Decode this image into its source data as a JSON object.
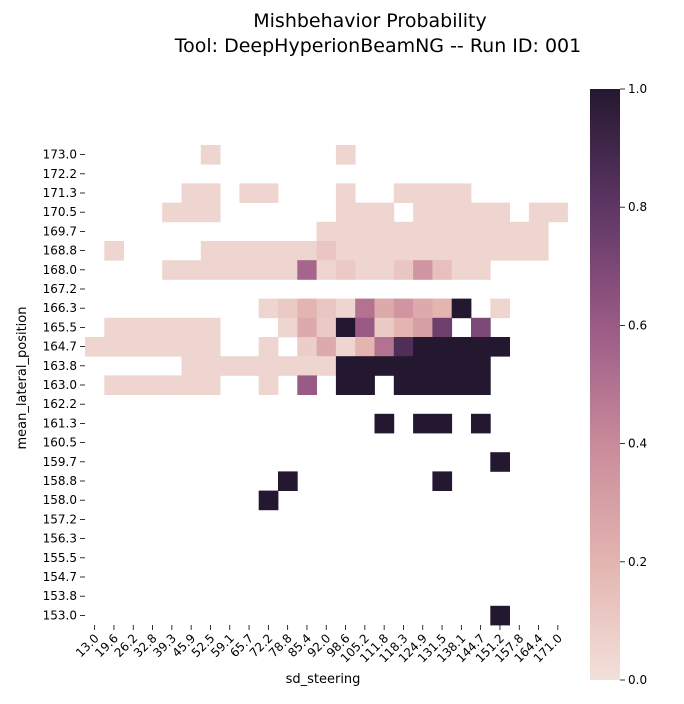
{
  "chart_data": {
    "type": "heatmap",
    "title": "Mishbehavior Probability",
    "subtitle": "Tool: DeepHyperionBeamNG -- Run ID: 001",
    "xlabel": "sd_steering",
    "ylabel": "mean_lateral_position",
    "x": [
      "13.0",
      "19.6",
      "26.2",
      "32.8",
      "39.3",
      "45.9",
      "52.5",
      "59.1",
      "65.7",
      "72.2",
      "78.8",
      "85.4",
      "92.0",
      "98.6",
      "105.2",
      "111.8",
      "118.3",
      "124.9",
      "131.5",
      "138.1",
      "144.7",
      "151.2",
      "157.8",
      "164.4",
      "171.0"
    ],
    "y": [
      "173.0",
      "172.2",
      "171.3",
      "170.5",
      "169.7",
      "168.8",
      "168.0",
      "167.2",
      "166.3",
      "165.5",
      "164.7",
      "163.8",
      "163.0",
      "162.2",
      "161.3",
      "160.5",
      "159.7",
      "158.8",
      "158.0",
      "157.2",
      "156.3",
      "155.5",
      "154.7",
      "153.8",
      "153.0"
    ],
    "z": [
      [
        null,
        null,
        null,
        null,
        null,
        null,
        0.05,
        null,
        null,
        null,
        null,
        null,
        null,
        0.05,
        null,
        null,
        null,
        null,
        null,
        null,
        null,
        null,
        null,
        null,
        null
      ],
      [
        null,
        null,
        null,
        null,
        null,
        null,
        null,
        null,
        null,
        null,
        null,
        null,
        null,
        null,
        null,
        null,
        null,
        null,
        null,
        null,
        null,
        null,
        null,
        null,
        null
      ],
      [
        null,
        null,
        null,
        null,
        null,
        0.05,
        0.05,
        null,
        0.05,
        0.05,
        null,
        null,
        null,
        0.05,
        null,
        null,
        0.05,
        0.05,
        0.05,
        0.05,
        null,
        null,
        null,
        null,
        null
      ],
      [
        null,
        null,
        null,
        null,
        0.05,
        0.05,
        0.05,
        null,
        null,
        null,
        null,
        null,
        null,
        0.05,
        0.05,
        0.05,
        null,
        0.05,
        0.05,
        0.05,
        0.05,
        0.05,
        null,
        0.05,
        0.05
      ],
      [
        null,
        null,
        null,
        null,
        null,
        null,
        null,
        null,
        null,
        null,
        null,
        null,
        0.05,
        0.05,
        0.05,
        0.05,
        0.05,
        0.05,
        0.05,
        0.05,
        0.05,
        0.05,
        0.05,
        0.05,
        null
      ],
      [
        null,
        0.05,
        null,
        null,
        null,
        null,
        0.05,
        0.05,
        0.05,
        0.05,
        0.05,
        0.05,
        0.12,
        0.05,
        0.05,
        0.05,
        0.05,
        0.05,
        0.05,
        0.05,
        0.05,
        0.05,
        0.05,
        0.05,
        null
      ],
      [
        null,
        null,
        null,
        null,
        0.05,
        0.05,
        0.05,
        0.05,
        0.05,
        0.05,
        0.05,
        0.55,
        0.05,
        0.1,
        0.05,
        0.05,
        0.12,
        0.35,
        0.15,
        0.05,
        0.05,
        null,
        null,
        null,
        null
      ],
      [
        null,
        null,
        null,
        null,
        null,
        null,
        null,
        null,
        null,
        null,
        null,
        null,
        null,
        null,
        null,
        null,
        null,
        null,
        null,
        null,
        null,
        null,
        null,
        null,
        null
      ],
      [
        null,
        null,
        null,
        null,
        null,
        null,
        null,
        null,
        null,
        0.05,
        0.1,
        0.2,
        0.12,
        0.05,
        0.5,
        0.25,
        0.35,
        0.25,
        0.2,
        1.0,
        null,
        0.05,
        null,
        null,
        null
      ],
      [
        null,
        0.05,
        0.05,
        0.05,
        0.05,
        0.05,
        0.05,
        null,
        null,
        null,
        0.05,
        0.25,
        0.1,
        1.0,
        0.6,
        0.1,
        0.2,
        0.3,
        0.75,
        null,
        0.7,
        null,
        null,
        null,
        null
      ],
      [
        0.05,
        0.05,
        0.05,
        0.05,
        0.05,
        0.05,
        0.05,
        null,
        null,
        0.05,
        null,
        0.08,
        0.25,
        0.05,
        0.2,
        0.5,
        0.85,
        1.0,
        1.0,
        1.0,
        1.0,
        1.0,
        null,
        null,
        null
      ],
      [
        null,
        null,
        null,
        null,
        null,
        0.05,
        0.05,
        0.05,
        0.05,
        0.05,
        0.05,
        0.05,
        0.05,
        1.0,
        1.0,
        1.0,
        1.0,
        1.0,
        1.0,
        1.0,
        1.0,
        null,
        null,
        null,
        null
      ],
      [
        null,
        0.05,
        0.05,
        0.05,
        0.05,
        0.05,
        0.05,
        null,
        null,
        0.05,
        null,
        0.6,
        null,
        1.0,
        1.0,
        null,
        1.0,
        1.0,
        1.0,
        1.0,
        1.0,
        null,
        null,
        null,
        null
      ],
      [
        null,
        null,
        null,
        null,
        null,
        null,
        null,
        null,
        null,
        null,
        null,
        null,
        null,
        null,
        null,
        null,
        null,
        null,
        null,
        null,
        null,
        null,
        null,
        null,
        null
      ],
      [
        null,
        null,
        null,
        null,
        null,
        null,
        null,
        null,
        null,
        null,
        null,
        null,
        null,
        null,
        null,
        1.0,
        null,
        1.0,
        1.0,
        null,
        1.0,
        null,
        null,
        null,
        null
      ],
      [
        null,
        null,
        null,
        null,
        null,
        null,
        null,
        null,
        null,
        null,
        null,
        null,
        null,
        null,
        null,
        null,
        null,
        null,
        null,
        null,
        null,
        null,
        null,
        null,
        null
      ],
      [
        null,
        null,
        null,
        null,
        null,
        null,
        null,
        null,
        null,
        null,
        null,
        null,
        null,
        null,
        null,
        null,
        null,
        null,
        null,
        null,
        null,
        1.0,
        null,
        null,
        null
      ],
      [
        null,
        null,
        null,
        null,
        null,
        null,
        null,
        null,
        null,
        null,
        1.0,
        null,
        null,
        null,
        null,
        null,
        null,
        null,
        1.0,
        null,
        null,
        null,
        null,
        null,
        null
      ],
      [
        null,
        null,
        null,
        null,
        null,
        null,
        null,
        null,
        null,
        1.0,
        null,
        null,
        null,
        null,
        null,
        null,
        null,
        null,
        null,
        null,
        null,
        null,
        null,
        null,
        null
      ],
      [
        null,
        null,
        null,
        null,
        null,
        null,
        null,
        null,
        null,
        null,
        null,
        null,
        null,
        null,
        null,
        null,
        null,
        null,
        null,
        null,
        null,
        null,
        null,
        null,
        null
      ],
      [
        null,
        null,
        null,
        null,
        null,
        null,
        null,
        null,
        null,
        null,
        null,
        null,
        null,
        null,
        null,
        null,
        null,
        null,
        null,
        null,
        null,
        null,
        null,
        null,
        null
      ],
      [
        null,
        null,
        null,
        null,
        null,
        null,
        null,
        null,
        null,
        null,
        null,
        null,
        null,
        null,
        null,
        null,
        null,
        null,
        null,
        null,
        null,
        null,
        null,
        null,
        null
      ],
      [
        null,
        null,
        null,
        null,
        null,
        null,
        null,
        null,
        null,
        null,
        null,
        null,
        null,
        null,
        null,
        null,
        null,
        null,
        null,
        null,
        null,
        null,
        null,
        null,
        null
      ],
      [
        null,
        null,
        null,
        null,
        null,
        null,
        null,
        null,
        null,
        null,
        null,
        null,
        null,
        null,
        null,
        null,
        null,
        null,
        null,
        null,
        null,
        null,
        null,
        null,
        null
      ],
      [
        null,
        null,
        null,
        null,
        null,
        null,
        null,
        null,
        null,
        null,
        null,
        null,
        null,
        null,
        null,
        null,
        null,
        null,
        null,
        null,
        null,
        1.0,
        null,
        null,
        null
      ]
    ],
    "colorbar": {
      "min": 0.0,
      "max": 1.0,
      "ticks": [
        "0.0",
        "0.2",
        "0.4",
        "0.6",
        "0.8",
        "1.0"
      ],
      "colors": [
        "#f2e0da",
        "#e3b4b0",
        "#c98a9a",
        "#9a5a86",
        "#5e3664",
        "#231830"
      ]
    },
    "grid": false,
    "legend": "colorbar-right"
  }
}
